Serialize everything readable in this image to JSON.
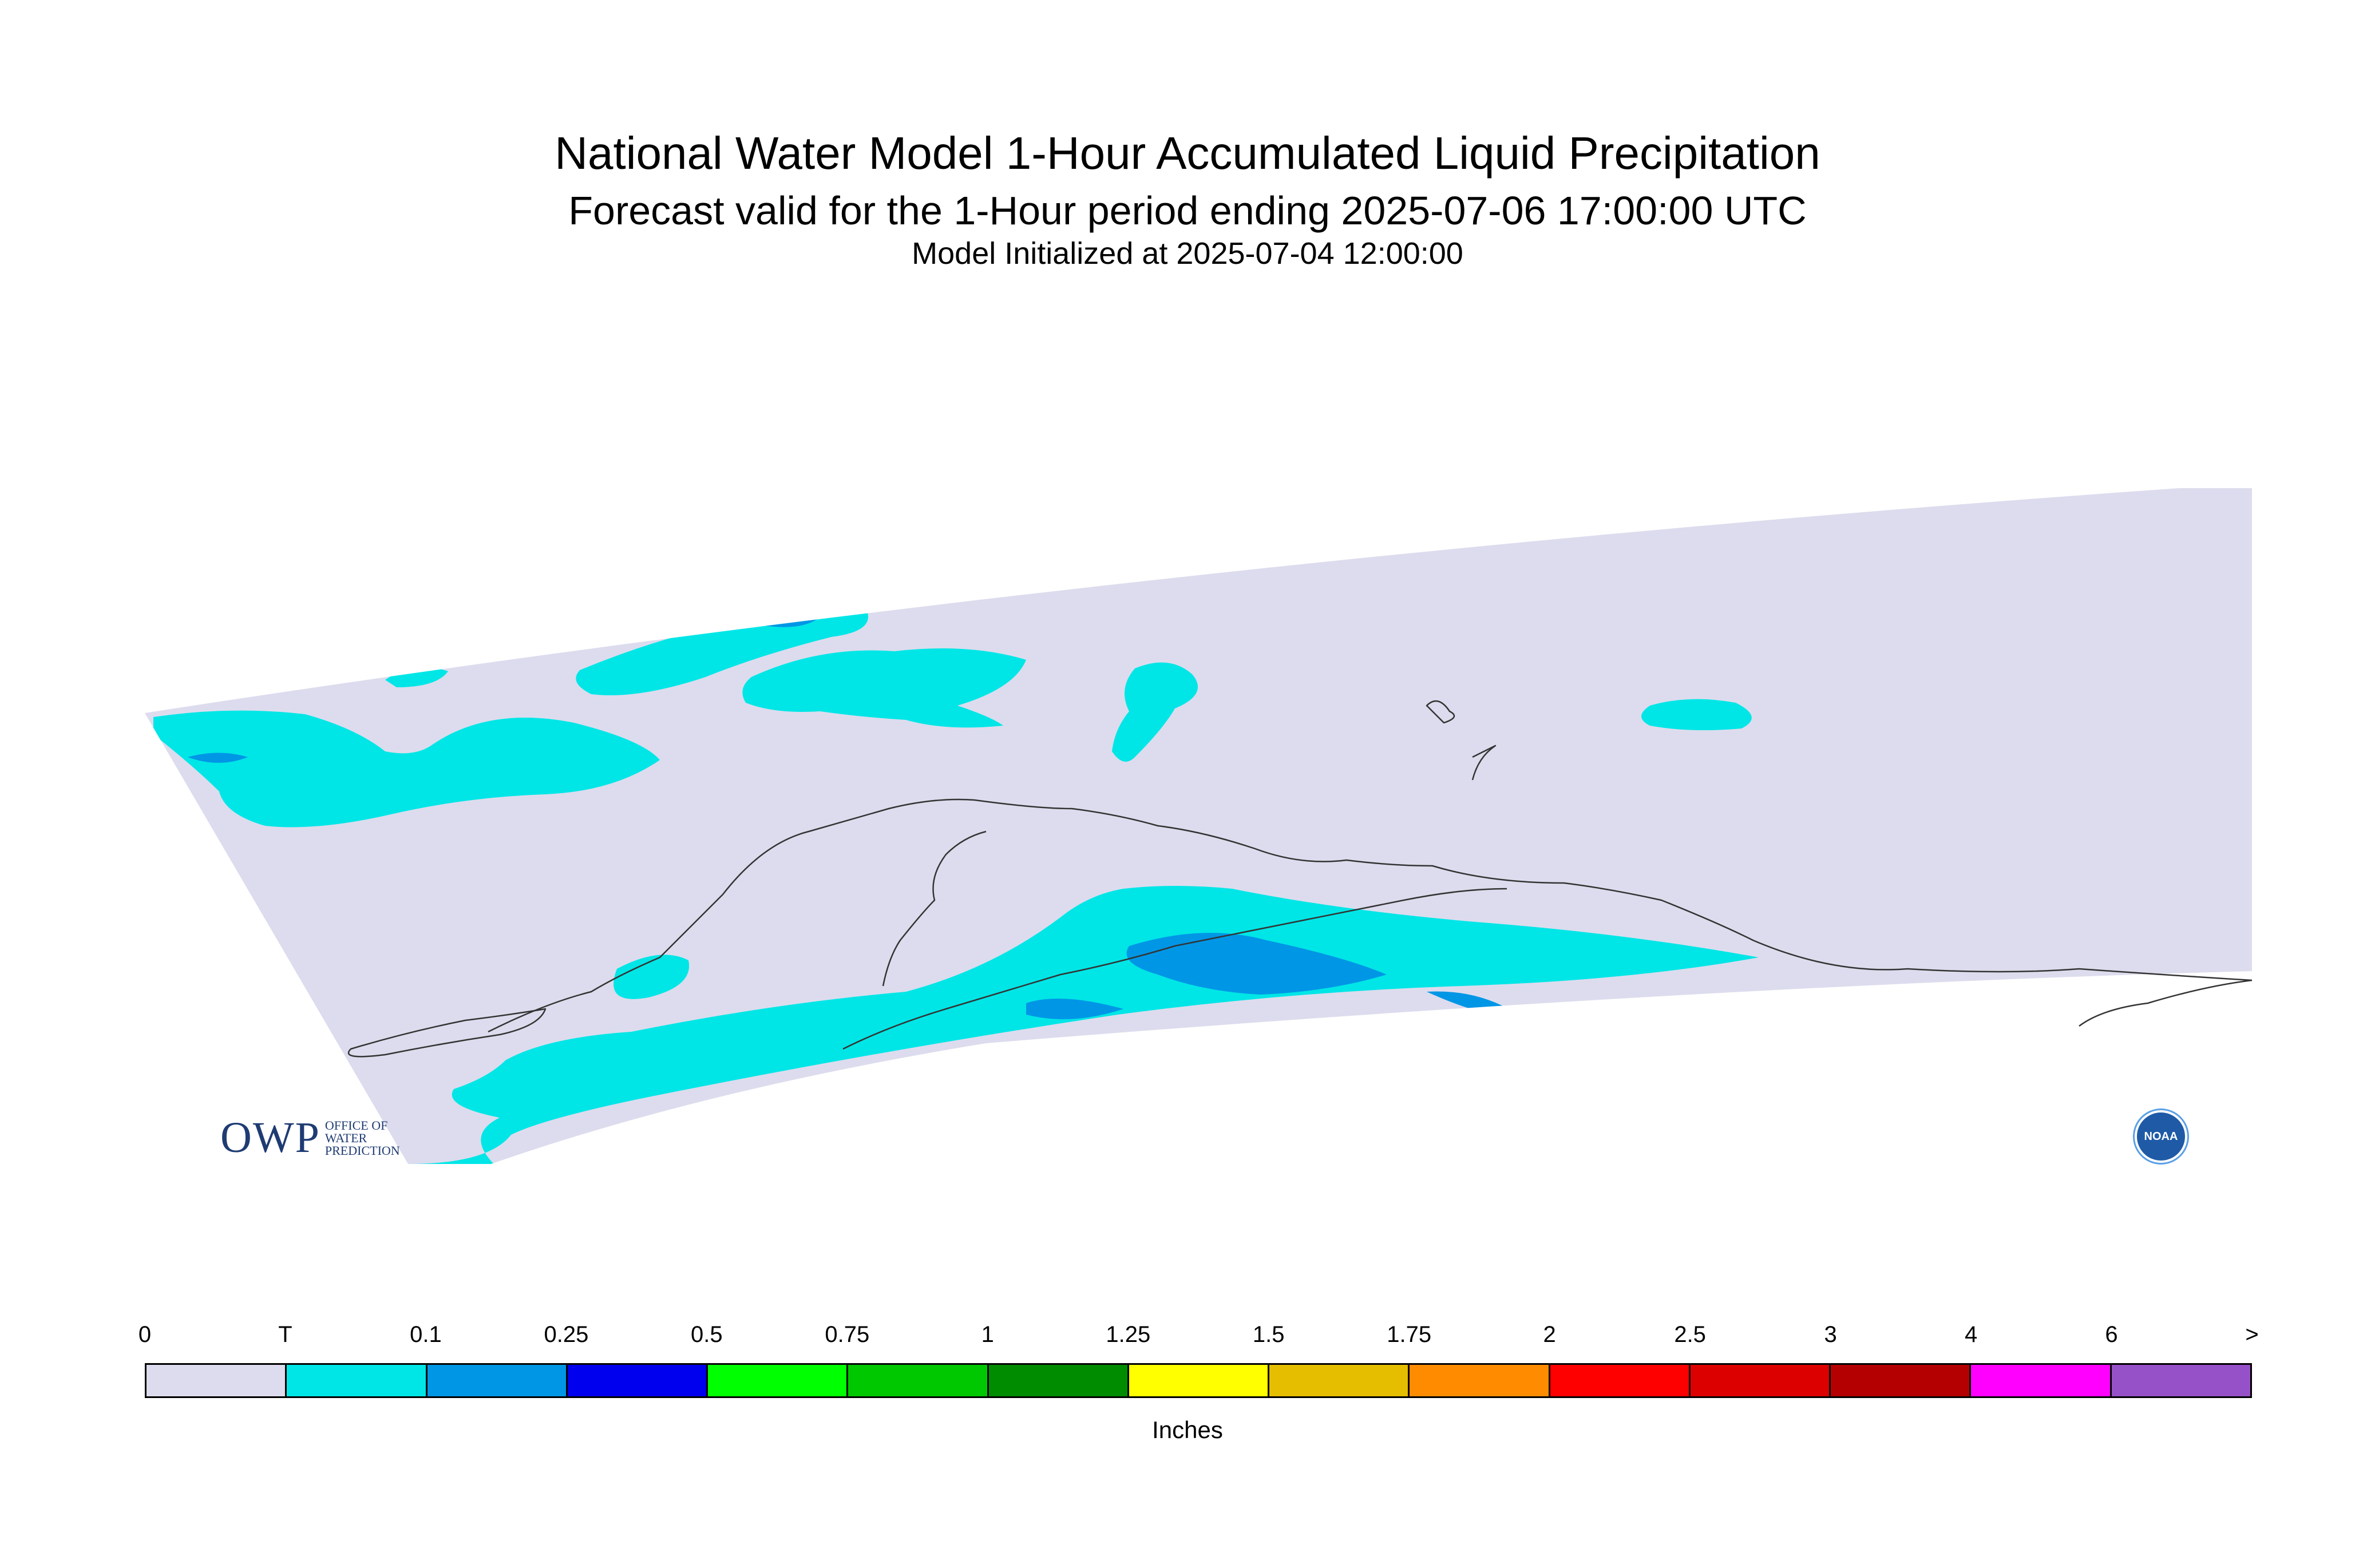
{
  "header": {
    "title": "National Water Model 1-Hour Accumulated Liquid Precipitation",
    "subtitle": "Forecast valid for the 1-Hour period ending 2025-07-06 17:00:00 UTC",
    "init_line": "Model Initialized at 2025-07-04 12:00:00"
  },
  "map": {
    "region": "Alaska",
    "background_color": "#dcdcee",
    "logos": {
      "owp_wordmark": "OWP",
      "owp_text": "OFFICE OF WATER PREDICTION",
      "noaa_text": "NOAA"
    }
  },
  "legend": {
    "units": "Inches",
    "tick_labels": [
      "0",
      "T",
      "0.1",
      "0.25",
      "0.5",
      "0.75",
      "1",
      "1.25",
      "1.5",
      "1.75",
      "2",
      "2.5",
      "3",
      "4",
      "6",
      ">"
    ],
    "colors": [
      "#dcdcee",
      "#00e6e6",
      "#0096e6",
      "#0000ee",
      "#00ff00",
      "#00c800",
      "#008c00",
      "#ffff00",
      "#e6be00",
      "#ff8c00",
      "#ff0000",
      "#dc0000",
      "#b40000",
      "#ff00ff",
      "#9650c8"
    ]
  }
}
